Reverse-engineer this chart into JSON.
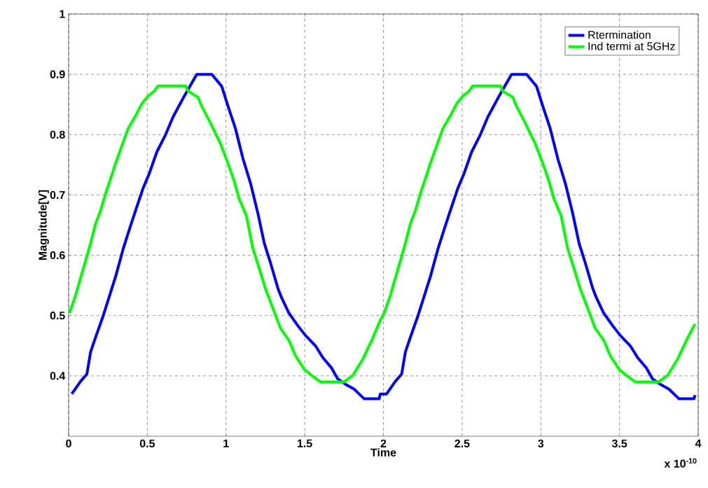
{
  "chart_data": {
    "type": "line",
    "xlabel": "Time",
    "ylabel": "Magnitude[V]",
    "xlim": [
      0,
      4
    ],
    "ylim": [
      0.3,
      1
    ],
    "xticks": [
      0,
      0.5,
      1,
      1.5,
      2,
      2.5,
      3,
      3.5,
      4
    ],
    "yticks": [
      0.4,
      0.5,
      0.6,
      0.7,
      0.8,
      0.9,
      1
    ],
    "grid": true,
    "legend": "top right",
    "annotations": [
      "x 10$^{-10}$"
    ],
    "series": [
      {
        "name": "Rtermination",
        "color": "#0000ff",
        "x": [
          0.02,
          0.076,
          0.116,
          0.14,
          0.17,
          0.22,
          0.26,
          0.3,
          0.346,
          0.386,
          0.425,
          0.473,
          0.513,
          0.56,
          0.616,
          0.663,
          0.735,
          0.814,
          0.91,
          0.973,
          1.013,
          1.06,
          1.108,
          1.156,
          1.203,
          1.243,
          1.283,
          1.33,
          1.354,
          1.4,
          1.457,
          1.505,
          1.568,
          1.616,
          1.671,
          1.71,
          1.76,
          1.814,
          1.878,
          1.973,
          1.98,
          2.02,
          2.076,
          2.116,
          2.14,
          2.17,
          2.22,
          2.26,
          2.3,
          2.346,
          2.386,
          2.425,
          2.473,
          2.513,
          2.56,
          2.616,
          2.663,
          2.735,
          2.814,
          2.91,
          2.973,
          3.013,
          3.06,
          3.108,
          3.156,
          3.203,
          3.243,
          3.283,
          3.33,
          3.354,
          3.4,
          3.457,
          3.505,
          3.568,
          3.616,
          3.671,
          3.71,
          3.76,
          3.814,
          3.878,
          3.973,
          3.98
        ],
        "values": [
          0.37,
          0.391,
          0.403,
          0.44,
          0.463,
          0.5,
          0.533,
          0.566,
          0.61,
          0.643,
          0.674,
          0.711,
          0.736,
          0.771,
          0.8,
          0.829,
          0.864,
          0.9,
          0.9,
          0.88,
          0.847,
          0.81,
          0.76,
          0.719,
          0.669,
          0.62,
          0.587,
          0.545,
          0.529,
          0.504,
          0.483,
          0.467,
          0.45,
          0.43,
          0.413,
          0.395,
          0.386,
          0.378,
          0.362,
          0.362,
          0.37,
          0.37,
          0.391,
          0.403,
          0.44,
          0.463,
          0.5,
          0.533,
          0.566,
          0.61,
          0.643,
          0.674,
          0.711,
          0.736,
          0.771,
          0.8,
          0.829,
          0.864,
          0.9,
          0.9,
          0.88,
          0.847,
          0.81,
          0.76,
          0.719,
          0.669,
          0.62,
          0.587,
          0.545,
          0.529,
          0.504,
          0.483,
          0.467,
          0.45,
          0.43,
          0.413,
          0.395,
          0.386,
          0.378,
          0.362,
          0.362,
          0.368
        ]
      },
      {
        "name": "Ind termi at 5GHz",
        "color": "#00ff00",
        "x": [
          0.005,
          0.044,
          0.076,
          0.108,
          0.14,
          0.17,
          0.203,
          0.235,
          0.267,
          0.298,
          0.338,
          0.378,
          0.425,
          0.465,
          0.505,
          0.544,
          0.568,
          0.743,
          0.759,
          0.822,
          0.846,
          0.9,
          0.965,
          1.013,
          1.052,
          1.083,
          1.13,
          1.17,
          1.21,
          1.25,
          1.298,
          1.346,
          1.4,
          1.44,
          1.497,
          1.552,
          1.6,
          1.75,
          1.806,
          1.87,
          1.933,
          1.98,
          2.005,
          2.044,
          2.076,
          2.108,
          2.14,
          2.17,
          2.203,
          2.235,
          2.267,
          2.298,
          2.338,
          2.378,
          2.425,
          2.465,
          2.505,
          2.544,
          2.568,
          2.743,
          2.759,
          2.822,
          2.846,
          2.9,
          2.965,
          3.013,
          3.052,
          3.083,
          3.13,
          3.17,
          3.21,
          3.25,
          3.298,
          3.346,
          3.4,
          3.44,
          3.497,
          3.552,
          3.6,
          3.75,
          3.806,
          3.87,
          3.933,
          3.98
        ],
        "values": [
          0.504,
          0.533,
          0.562,
          0.591,
          0.62,
          0.651,
          0.674,
          0.702,
          0.727,
          0.752,
          0.781,
          0.81,
          0.831,
          0.851,
          0.864,
          0.872,
          0.881,
          0.881,
          0.872,
          0.862,
          0.847,
          0.82,
          0.785,
          0.752,
          0.723,
          0.694,
          0.665,
          0.612,
          0.579,
          0.545,
          0.512,
          0.479,
          0.459,
          0.434,
          0.411,
          0.399,
          0.39,
          0.39,
          0.401,
          0.428,
          0.463,
          0.492,
          0.504,
          0.533,
          0.562,
          0.591,
          0.62,
          0.651,
          0.674,
          0.702,
          0.727,
          0.752,
          0.781,
          0.81,
          0.831,
          0.851,
          0.864,
          0.872,
          0.881,
          0.881,
          0.872,
          0.862,
          0.847,
          0.82,
          0.785,
          0.752,
          0.723,
          0.694,
          0.665,
          0.612,
          0.579,
          0.545,
          0.512,
          0.479,
          0.459,
          0.434,
          0.411,
          0.399,
          0.39,
          0.39,
          0.401,
          0.428,
          0.463,
          0.486
        ]
      }
    ]
  }
}
